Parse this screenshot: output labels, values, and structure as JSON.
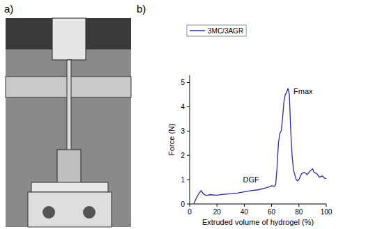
{
  "panel_labels": [
    "a)",
    "b)"
  ],
  "chart_data": {
    "type": "line",
    "x_label": "Extruded volume of hydrogel (%)",
    "y_label": "Force (N)",
    "annotations": [
      "DGF",
      "Fmax"
    ],
    "x": [
      3,
      5,
      7,
      8.5,
      10,
      12,
      15,
      20,
      25,
      30,
      35,
      40,
      45,
      50,
      55,
      58,
      60,
      62,
      63,
      64,
      65,
      66,
      67,
      68,
      69,
      70,
      71,
      72,
      73,
      74,
      75,
      76,
      78,
      79,
      80,
      82,
      84,
      86,
      88,
      89,
      90,
      91,
      93,
      95,
      97,
      99,
      100
    ],
    "series": [
      {
        "name": "3MC/3AGR",
        "color": "#2a2aa8",
        "values": [
          0,
          0.25,
          0.45,
          0.55,
          0.42,
          0.35,
          0.38,
          0.36,
          0.4,
          0.42,
          0.45,
          0.5,
          0.55,
          0.58,
          0.65,
          0.7,
          0.75,
          0.72,
          0.8,
          1.5,
          2.5,
          2.9,
          3.0,
          3.5,
          4.2,
          4.5,
          4.6,
          4.75,
          4.5,
          3.0,
          2.0,
          1.4,
          1.0,
          0.95,
          1.0,
          1.25,
          1.3,
          1.2,
          1.35,
          1.4,
          1.45,
          1.3,
          1.25,
          1.1,
          1.15,
          1.05,
          1.05
        ]
      }
    ],
    "xlim": [
      0,
      100
    ],
    "ylim": [
      0,
      5.3
    ],
    "xticks": [
      0,
      20,
      40,
      60,
      80,
      100
    ],
    "yticks": [
      0,
      1,
      2,
      3,
      4,
      5
    ],
    "legend": "top-left",
    "grid": false
  }
}
